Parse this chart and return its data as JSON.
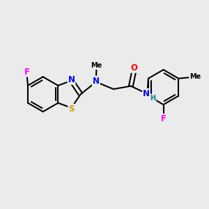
{
  "bg_color": "#EBEBEB",
  "bond_color": "#000000",
  "bond_width": 1.5,
  "atom_colors": {
    "F": "#FF00FF",
    "N": "#0000FF",
    "S": "#C8A000",
    "O": "#FF0000",
    "H": "#008080",
    "C": "#000000"
  },
  "font_size": 8.5
}
